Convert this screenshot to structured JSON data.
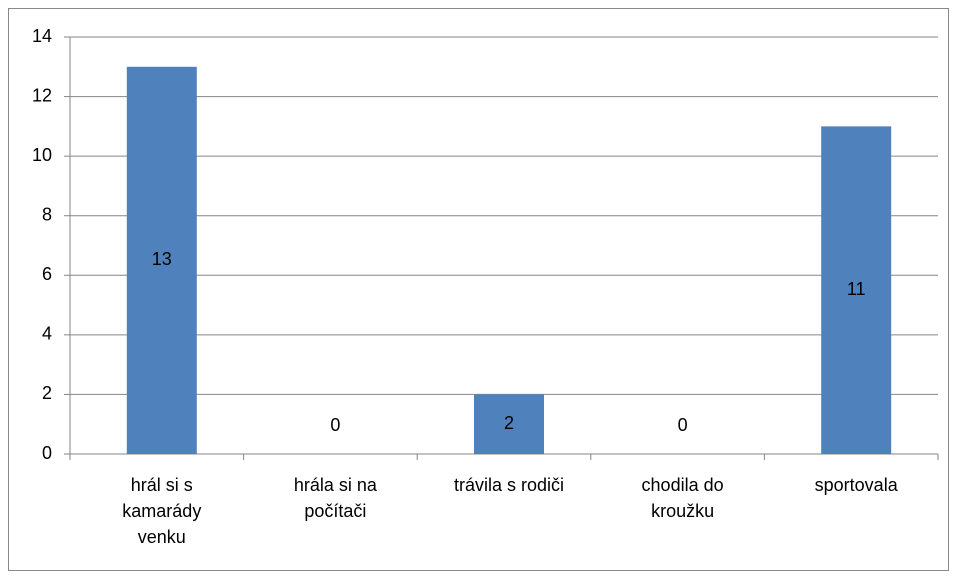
{
  "chart_data": {
    "type": "bar",
    "categories": [
      "hrál si s kamarády venku",
      "hrála si na počítači",
      "trávila s rodiči",
      "chodila do kroužku",
      "sportovala"
    ],
    "values": [
      13,
      0,
      2,
      0,
      11
    ],
    "color": "#4f81bd",
    "ylim": [
      0,
      14
    ],
    "yticks": [
      0,
      2,
      4,
      6,
      8,
      10,
      12,
      14
    ],
    "grid": true
  }
}
